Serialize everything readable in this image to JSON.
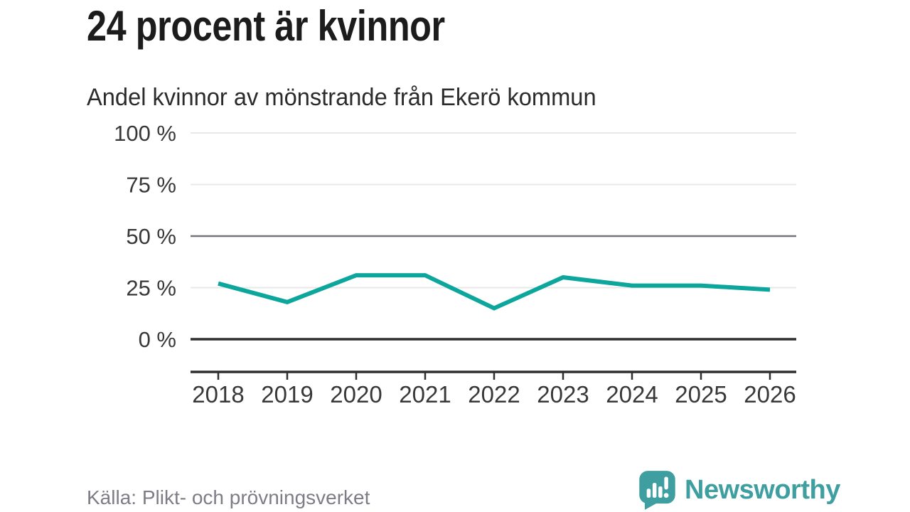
{
  "header": {
    "title": "24 procent är kvinnor",
    "subtitle": "Andel kvinnor av mönstrande från Ekerö kommun"
  },
  "chart_data": {
    "type": "line",
    "title": "24 procent är kvinnor",
    "subtitle": "Andel kvinnor av mönstrande från Ekerö kommun",
    "x": [
      2018,
      2019,
      2020,
      2021,
      2022,
      2023,
      2024,
      2025,
      2026
    ],
    "series": [
      {
        "name": "Andel kvinnor av mönstrande",
        "unit": "%",
        "values": [
          27,
          18,
          31,
          31,
          15,
          30,
          26,
          26,
          24
        ]
      }
    ],
    "ylim": [
      0,
      100
    ],
    "yticks": [
      {
        "value": 0,
        "label": "0 %",
        "style": "baseline"
      },
      {
        "value": 25,
        "label": "25 %",
        "style": "minor"
      },
      {
        "value": 50,
        "label": "50 %",
        "style": "major"
      },
      {
        "value": 75,
        "label": "75 %",
        "style": "minor"
      },
      {
        "value": 100,
        "label": "100 %",
        "style": "minor"
      }
    ],
    "grid": "horizontal",
    "legend": "none",
    "line_color": "#0da69c"
  },
  "footer": {
    "source": "Källa: Plikt- och prövningsverket",
    "brand": "Newsworthy"
  },
  "icons": {
    "logo": "newsworthy-speech-bubble-barchart-icon"
  },
  "colors": {
    "accent_line": "#0da69c",
    "brand_teal": "#3f9fa0",
    "grid_light": "#e8e8e8",
    "grid_major": "#73737d",
    "axis_dark": "#2f2f2f",
    "title_text": "#1c1c1c",
    "label_text": "#383838",
    "source_text": "#7d7d87",
    "background": "#ffffff"
  }
}
